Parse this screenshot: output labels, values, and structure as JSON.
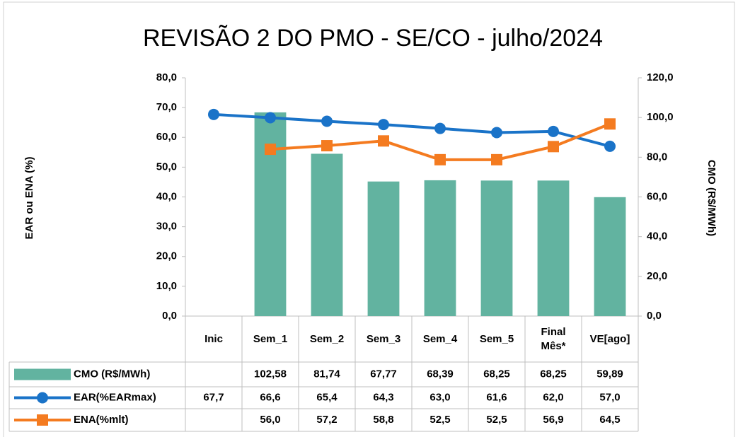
{
  "chart_data": {
    "type": "bar-line",
    "title": "REVISÃO 2 DO PMO - SE/CO - julho/2024",
    "y_label": "EAR ou ENA (%)",
    "y2_label": "CMO (R$/MWh)",
    "categories": [
      "Inic",
      "Sem_1",
      "Sem_2",
      "Sem_3",
      "Sem_4",
      "Sem_5",
      "Final Mês*",
      "VE[ago]"
    ],
    "ylim": [
      0,
      80
    ],
    "yticks": [
      {
        "value": 0,
        "label": "0,0"
      },
      {
        "value": 10,
        "label": "10,0"
      },
      {
        "value": 20,
        "label": "20,0"
      },
      {
        "value": 30,
        "label": "30,0"
      },
      {
        "value": 40,
        "label": "40,0"
      },
      {
        "value": 50,
        "label": "50,0"
      },
      {
        "value": 60,
        "label": "60,0"
      },
      {
        "value": 70,
        "label": "70,0"
      },
      {
        "value": 80,
        "label": "80,0"
      }
    ],
    "y2lim": [
      0,
      120
    ],
    "y2ticks": [
      {
        "value": 0,
        "label": "0,0"
      },
      {
        "value": 20,
        "label": "20,0"
      },
      {
        "value": 40,
        "label": "40,0"
      },
      {
        "value": 60,
        "label": "60,0"
      },
      {
        "value": 80,
        "label": "80,0"
      },
      {
        "value": 100,
        "label": "100,0"
      },
      {
        "value": 120,
        "label": "120,0"
      }
    ],
    "series": [
      {
        "name": "CMO (R$/MWh)",
        "type": "bar",
        "axis": "y2",
        "color": "#62b3a0",
        "values": [
          null,
          102.58,
          81.74,
          67.77,
          68.39,
          68.25,
          68.25,
          59.89
        ],
        "value_labels": [
          null,
          "102,58",
          "81,74",
          "67,77",
          "68,39",
          "68,25",
          "68,25",
          "59,89"
        ]
      },
      {
        "name": "EAR(%EARmax)",
        "type": "line",
        "marker": "circle",
        "color": "#1a73c8",
        "values": [
          67.7,
          66.6,
          65.4,
          64.3,
          63.0,
          61.6,
          62.0,
          57.0
        ],
        "value_labels": [
          "67,7",
          "66,6",
          "65,4",
          "64,3",
          "63,0",
          "61,6",
          "62,0",
          "57,0"
        ]
      },
      {
        "name": "ENA(%mlt)",
        "type": "line",
        "marker": "square",
        "color": "#f47b20",
        "values": [
          null,
          56.0,
          57.2,
          58.8,
          52.5,
          52.5,
          56.9,
          64.5
        ],
        "value_labels": [
          null,
          "56,0",
          "57,2",
          "58,8",
          "52,5",
          "52,5",
          "56,9",
          "64,5"
        ]
      }
    ]
  }
}
